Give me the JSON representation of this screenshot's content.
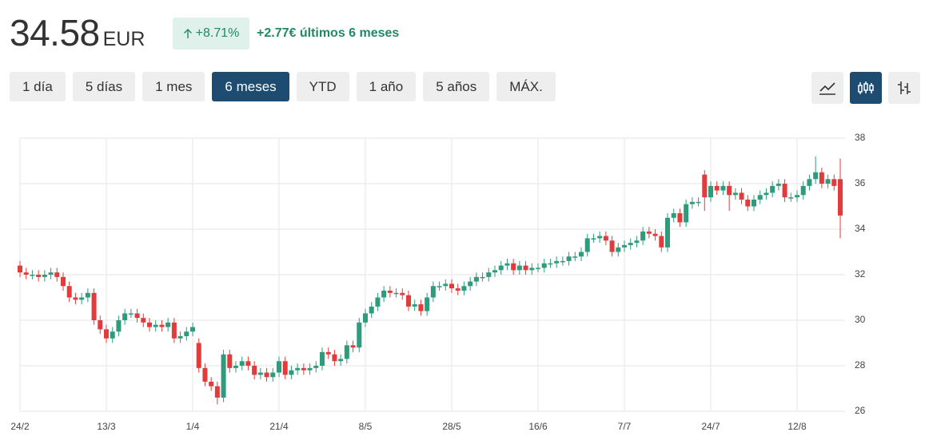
{
  "header": {
    "price": "34.58",
    "currency": "EUR",
    "change_pct": "+8.71%",
    "change_text": "+2.77€ últimos 6 meses"
  },
  "range_buttons": [
    {
      "label": "1 día"
    },
    {
      "label": "5 días"
    },
    {
      "label": "1 mes"
    },
    {
      "label": "6 meses",
      "active": true
    },
    {
      "label": "YTD"
    },
    {
      "label": "1 año"
    },
    {
      "label": "5 años"
    },
    {
      "label": "MÁX."
    }
  ],
  "chart_data": {
    "type": "candlestick",
    "up_color": "#2e9b7c",
    "down_color": "#e23b3b",
    "grid": true,
    "y_axis_side": "right",
    "ylim": [
      26,
      38
    ],
    "yticks": [
      26,
      28,
      30,
      32,
      34,
      36,
      38
    ],
    "categories": [
      "24/2",
      null,
      null,
      null,
      null,
      null,
      null,
      null,
      null,
      null,
      null,
      null,
      null,
      null,
      "13/3",
      null,
      null,
      null,
      null,
      null,
      null,
      null,
      null,
      null,
      null,
      null,
      null,
      null,
      "1/4",
      null,
      null,
      null,
      null,
      null,
      null,
      null,
      null,
      null,
      null,
      null,
      null,
      null,
      "21/4",
      null,
      null,
      null,
      null,
      null,
      null,
      null,
      null,
      null,
      null,
      null,
      null,
      null,
      "8/5",
      null,
      null,
      null,
      null,
      null,
      null,
      null,
      null,
      null,
      null,
      null,
      null,
      null,
      "28/5",
      null,
      null,
      null,
      null,
      null,
      null,
      null,
      null,
      null,
      null,
      null,
      null,
      null,
      "16/6",
      null,
      null,
      null,
      null,
      null,
      null,
      null,
      null,
      null,
      null,
      null,
      null,
      null,
      "7/7",
      null,
      null,
      null,
      null,
      null,
      null,
      null,
      null,
      null,
      null,
      null,
      null,
      null,
      "24/7",
      null,
      null,
      null,
      null,
      null,
      null,
      null,
      null,
      null,
      null,
      null,
      null,
      null,
      "12/8",
      null,
      null,
      null,
      null,
      null,
      null,
      null
    ],
    "open": [
      32.4,
      32.1,
      32.0,
      32.0,
      31.9,
      32.0,
      32.1,
      31.9,
      31.5,
      31.0,
      30.9,
      31.0,
      31.2,
      30.0,
      29.6,
      29.2,
      29.5,
      30.0,
      30.3,
      30.3,
      30.1,
      29.9,
      29.7,
      29.8,
      29.7,
      29.9,
      29.2,
      29.3,
      29.5,
      29.0,
      27.9,
      27.3,
      27.1,
      26.6,
      28.5,
      27.9,
      28.0,
      28.2,
      28.0,
      27.6,
      27.7,
      27.5,
      27.7,
      28.2,
      27.6,
      27.8,
      27.9,
      27.8,
      27.9,
      28.0,
      28.6,
      28.5,
      28.2,
      28.3,
      28.9,
      28.8,
      29.9,
      30.3,
      30.6,
      31.0,
      31.3,
      31.2,
      31.2,
      31.1,
      30.6,
      30.7,
      30.4,
      31.0,
      31.5,
      31.5,
      31.6,
      31.4,
      31.3,
      31.5,
      31.7,
      31.9,
      31.9,
      32.1,
      32.2,
      32.4,
      32.5,
      32.2,
      32.4,
      32.2,
      32.3,
      32.3,
      32.5,
      32.5,
      32.6,
      32.6,
      32.8,
      32.8,
      33.0,
      33.6,
      33.6,
      33.7,
      33.5,
      33.0,
      33.2,
      33.3,
      33.4,
      33.5,
      33.9,
      33.8,
      33.7,
      33.2,
      34.5,
      34.7,
      34.3,
      35.1,
      35.2,
      36.4,
      35.4,
      35.9,
      35.7,
      35.9,
      35.5,
      35.6,
      35.3,
      35.0,
      35.3,
      35.5,
      35.6,
      35.9,
      36.0,
      35.4,
      35.4,
      35.5,
      35.9,
      36.2,
      36.5,
      36.0,
      36.2,
      36.2
    ],
    "high": [
      32.6,
      32.3,
      32.2,
      32.2,
      32.2,
      32.3,
      32.3,
      32.1,
      31.7,
      31.2,
      31.2,
      31.4,
      31.4,
      30.2,
      29.8,
      29.7,
      30.2,
      30.5,
      30.5,
      30.5,
      30.3,
      30.1,
      30.0,
      30.0,
      30.1,
      30.1,
      29.5,
      29.7,
      29.9,
      29.2,
      28.1,
      27.5,
      27.3,
      28.7,
      28.7,
      28.2,
      28.4,
      28.4,
      28.2,
      27.9,
      27.9,
      27.9,
      28.4,
      28.4,
      28.0,
      28.1,
      28.1,
      28.1,
      28.2,
      28.8,
      28.8,
      28.7,
      28.5,
      29.1,
      29.1,
      30.1,
      30.5,
      30.8,
      31.2,
      31.5,
      31.5,
      31.4,
      31.4,
      31.3,
      30.9,
      30.9,
      31.2,
      31.7,
      31.7,
      31.8,
      31.8,
      31.6,
      31.7,
      31.9,
      32.1,
      32.1,
      32.3,
      32.4,
      32.6,
      32.7,
      32.7,
      32.6,
      32.6,
      32.5,
      32.5,
      32.7,
      32.7,
      32.8,
      32.8,
      33.0,
      33.0,
      33.2,
      33.8,
      33.8,
      33.9,
      33.9,
      33.7,
      33.4,
      33.5,
      33.6,
      33.7,
      34.1,
      34.1,
      34.0,
      33.9,
      34.7,
      34.9,
      34.9,
      35.3,
      35.4,
      35.4,
      36.6,
      36.1,
      36.1,
      36.1,
      36.1,
      35.8,
      35.8,
      35.5,
      35.5,
      35.7,
      35.8,
      36.1,
      36.2,
      36.2,
      35.6,
      35.7,
      36.1,
      36.4,
      37.2,
      36.7,
      36.4,
      36.4,
      37.1
    ],
    "low": [
      31.9,
      31.8,
      31.8,
      31.7,
      31.7,
      31.8,
      31.7,
      31.3,
      30.8,
      30.7,
      30.7,
      30.8,
      29.8,
      29.4,
      29.0,
      29.0,
      29.3,
      29.8,
      30.1,
      29.9,
      29.7,
      29.5,
      29.5,
      29.5,
      29.5,
      29.0,
      29.0,
      29.1,
      29.3,
      27.7,
      27.1,
      26.9,
      26.3,
      26.4,
      27.7,
      27.7,
      27.8,
      27.8,
      27.4,
      27.4,
      27.3,
      27.3,
      27.5,
      27.4,
      27.4,
      27.6,
      27.6,
      27.6,
      27.7,
      27.8,
      28.3,
      28.0,
      28.0,
      28.1,
      28.6,
      28.6,
      29.7,
      30.1,
      30.4,
      30.8,
      31.0,
      31.0,
      30.9,
      30.4,
      30.4,
      30.2,
      30.2,
      30.8,
      31.3,
      31.3,
      31.2,
      31.1,
      31.1,
      31.3,
      31.5,
      31.7,
      31.7,
      31.9,
      32.0,
      32.2,
      32.0,
      32.0,
      32.0,
      32.0,
      32.1,
      32.1,
      32.3,
      32.3,
      32.4,
      32.4,
      32.6,
      32.6,
      32.8,
      33.4,
      33.4,
      33.3,
      32.8,
      32.8,
      33.0,
      33.1,
      33.2,
      33.3,
      33.6,
      33.5,
      33.0,
      33.0,
      34.3,
      34.1,
      34.1,
      34.9,
      35.0,
      34.8,
      35.2,
      35.5,
      35.5,
      34.8,
      35.3,
      35.1,
      34.8,
      34.8,
      35.1,
      35.3,
      35.4,
      35.7,
      35.2,
      35.2,
      35.2,
      35.3,
      35.7,
      36.0,
      35.8,
      35.8,
      35.7,
      33.6
    ],
    "close": [
      32.1,
      32.0,
      32.0,
      31.9,
      32.0,
      32.1,
      31.9,
      31.5,
      31.0,
      30.9,
      31.0,
      31.2,
      30.0,
      29.6,
      29.2,
      29.5,
      30.0,
      30.3,
      30.3,
      30.1,
      29.9,
      29.7,
      29.8,
      29.7,
      29.9,
      29.2,
      29.3,
      29.5,
      29.7,
      27.9,
      27.3,
      27.1,
      26.6,
      28.5,
      27.9,
      28.0,
      28.2,
      28.0,
      27.6,
      27.7,
      27.5,
      27.7,
      28.2,
      27.6,
      27.8,
      27.9,
      27.8,
      27.9,
      28.0,
      28.6,
      28.5,
      28.2,
      28.3,
      28.9,
      28.8,
      29.9,
      30.3,
      30.6,
      31.0,
      31.3,
      31.2,
      31.2,
      31.1,
      30.6,
      30.7,
      30.4,
      31.0,
      31.5,
      31.5,
      31.6,
      31.4,
      31.3,
      31.5,
      31.7,
      31.9,
      31.9,
      32.1,
      32.2,
      32.4,
      32.5,
      32.2,
      32.4,
      32.2,
      32.3,
      32.3,
      32.5,
      32.5,
      32.6,
      32.6,
      32.8,
      32.8,
      33.0,
      33.6,
      33.6,
      33.7,
      33.5,
      33.0,
      33.2,
      33.3,
      33.4,
      33.5,
      33.9,
      33.8,
      33.7,
      33.2,
      34.5,
      34.7,
      34.3,
      35.1,
      35.2,
      35.2,
      35.4,
      35.9,
      35.7,
      35.9,
      35.5,
      35.6,
      35.3,
      35.0,
      35.3,
      35.5,
      35.6,
      35.9,
      36.0,
      35.4,
      35.4,
      35.5,
      35.9,
      36.2,
      36.5,
      36.0,
      36.2,
      35.9,
      34.6
    ]
  }
}
